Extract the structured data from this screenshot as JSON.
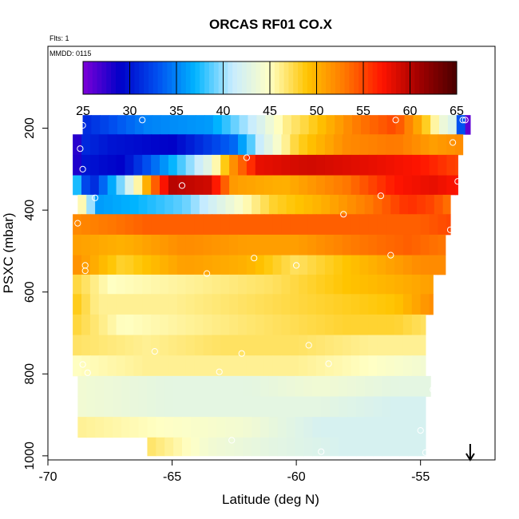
{
  "chart_data": {
    "type": "heatmap",
    "title": "ORCAS RF01 CO.X",
    "notes": [
      "Flts: 1",
      "MMDD: 0115"
    ],
    "xlabel": "Latitude (deg N)",
    "ylabel": "PSXC (mbar)",
    "xlim": [
      -70,
      -52
    ],
    "ylim": [
      1010,
      0
    ],
    "y_reversed": true,
    "x_ticks": [
      -70,
      -65,
      -60,
      -55
    ],
    "x_tick_labels": [
      "-70",
      "-65",
      "-60",
      "-55"
    ],
    "y_ticks": [
      200,
      400,
      600,
      800,
      1000
    ],
    "y_tick_labels": [
      "200",
      "400",
      "600",
      "800",
      "1000"
    ],
    "colorbar": {
      "min": 25,
      "max": 65,
      "ticks": [
        25,
        30,
        35,
        40,
        45,
        50,
        55,
        60,
        65
      ],
      "tick_labels": [
        "25",
        "30",
        "35",
        "40",
        "45",
        "50",
        "55",
        "60",
        "65"
      ],
      "colors": [
        "#7d00d8",
        "#0000c8",
        "#0050f0",
        "#00b4ff",
        "#c8ecff",
        "#ffffc4",
        "#ffc400",
        "#ff7800",
        "#ff1400",
        "#a00000",
        "#4a0000"
      ]
    },
    "legend": "top",
    "grid": false,
    "pressure_bins": [
      {
        "p": 190,
        "lat_range": [
          -68.6,
          -53.0
        ],
        "knots": [
          [
            -68.6,
            31
          ],
          [
            -66.0,
            35
          ],
          [
            -63.5,
            36
          ],
          [
            -61.5,
            42
          ],
          [
            -60.5,
            46
          ],
          [
            -59.5,
            48
          ],
          [
            -57.5,
            53
          ],
          [
            -56.0,
            55
          ],
          [
            -55.0,
            50
          ],
          [
            -54.2,
            44
          ],
          [
            -53.6,
            42
          ],
          [
            -53.2,
            26
          ]
        ]
      },
      {
        "p": 240,
        "lat_range": [
          -69.0,
          -53.3
        ],
        "knots": [
          [
            -69.0,
            26
          ],
          [
            -68.5,
            31
          ],
          [
            -67.5,
            30
          ],
          [
            -65.0,
            29
          ],
          [
            -62.5,
            34
          ],
          [
            -61.5,
            41
          ],
          [
            -60.0,
            48
          ],
          [
            -58.0,
            52
          ],
          [
            -56.0,
            53
          ],
          [
            -54.5,
            51
          ],
          [
            -53.3,
            52
          ]
        ]
      },
      {
        "p": 290,
        "lat_range": [
          -69.0,
          -53.5
        ],
        "knots": [
          [
            -69.0,
            27
          ],
          [
            -68.5,
            30
          ],
          [
            -67.0,
            29
          ],
          [
            -65.0,
            37
          ],
          [
            -63.5,
            43
          ],
          [
            -62.5,
            52
          ],
          [
            -61.5,
            58
          ],
          [
            -59.5,
            59
          ],
          [
            -57.0,
            58
          ],
          [
            -55.0,
            57
          ],
          [
            -53.5,
            55
          ]
        ]
      },
      {
        "p": 340,
        "lat_range": [
          -69.0,
          -53.5
        ],
        "knots": [
          [
            -69.0,
            40
          ],
          [
            -68.3,
            30
          ],
          [
            -67.5,
            36
          ],
          [
            -66.5,
            44
          ],
          [
            -65.8,
            53
          ],
          [
            -65.0,
            60
          ],
          [
            -63.5,
            59
          ],
          [
            -62.5,
            51
          ],
          [
            -60.5,
            50
          ],
          [
            -58.0,
            53
          ],
          [
            -56.0,
            57
          ],
          [
            -54.5,
            58
          ],
          [
            -53.5,
            57
          ]
        ]
      },
      {
        "p": 385,
        "lat_range": [
          -68.8,
          -53.8
        ],
        "knots": [
          [
            -68.8,
            48
          ],
          [
            -68.0,
            36
          ],
          [
            -66.5,
            37
          ],
          [
            -64.5,
            39
          ],
          [
            -62.5,
            44
          ],
          [
            -61.0,
            48
          ],
          [
            -59.0,
            50
          ],
          [
            -57.0,
            53
          ],
          [
            -55.5,
            56
          ],
          [
            -54.5,
            55
          ],
          [
            -53.8,
            53
          ]
        ]
      },
      {
        "p": 435,
        "lat_range": [
          -69.0,
          -53.8
        ],
        "knots": [
          [
            -69.0,
            52
          ],
          [
            -66.0,
            54
          ],
          [
            -62.0,
            54
          ],
          [
            -58.0,
            54
          ],
          [
            -55.0,
            54
          ],
          [
            -53.8,
            55
          ]
        ]
      },
      {
        "p": 485,
        "lat_range": [
          -69.0,
          -54.0
        ],
        "knots": [
          [
            -69.0,
            51
          ],
          [
            -67.0,
            50
          ],
          [
            -64.5,
            52
          ],
          [
            -62.0,
            51
          ],
          [
            -60.0,
            51
          ],
          [
            -57.5,
            53
          ],
          [
            -55.5,
            54
          ],
          [
            -54.0,
            53
          ]
        ]
      },
      {
        "p": 535,
        "lat_range": [
          -69.0,
          -54.0
        ],
        "knots": [
          [
            -69.0,
            52
          ],
          [
            -67.0,
            48
          ],
          [
            -64.5,
            51
          ],
          [
            -62.0,
            50
          ],
          [
            -60.0,
            47
          ],
          [
            -57.0,
            50
          ],
          [
            -55.0,
            52
          ],
          [
            -54.0,
            52
          ]
        ]
      },
      {
        "p": 580,
        "lat_range": [
          -69.0,
          -54.5
        ],
        "knots": [
          [
            -69.0,
            48
          ],
          [
            -67.5,
            45
          ],
          [
            -64.0,
            46
          ],
          [
            -61.0,
            47
          ],
          [
            -58.0,
            49
          ],
          [
            -56.0,
            50
          ],
          [
            -54.5,
            51
          ]
        ]
      },
      {
        "p": 630,
        "lat_range": [
          -69.0,
          -54.5
        ],
        "knots": [
          [
            -69.0,
            49
          ],
          [
            -68.0,
            46
          ],
          [
            -65.0,
            46
          ],
          [
            -62.0,
            47
          ],
          [
            -59.0,
            48
          ],
          [
            -56.0,
            49
          ],
          [
            -54.5,
            52
          ]
        ]
      },
      {
        "p": 680,
        "lat_range": [
          -69.0,
          -54.8
        ],
        "knots": [
          [
            -69.0,
            48
          ],
          [
            -67.0,
            45
          ],
          [
            -64.0,
            46
          ],
          [
            -61.0,
            47
          ],
          [
            -58.0,
            48
          ],
          [
            -56.0,
            48
          ],
          [
            -54.8,
            47
          ]
        ]
      },
      {
        "p": 730,
        "lat_range": [
          -69.0,
          -54.8
        ],
        "knots": [
          [
            -69.0,
            47
          ],
          [
            -66.0,
            46
          ],
          [
            -63.0,
            47
          ],
          [
            -60.0,
            47
          ],
          [
            -57.0,
            46
          ],
          [
            -54.8,
            46
          ]
        ]
      },
      {
        "p": 780,
        "lat_range": [
          -69.0,
          -54.8
        ],
        "knots": [
          [
            -69.0,
            45
          ],
          [
            -66.0,
            46
          ],
          [
            -63.0,
            46
          ],
          [
            -60.0,
            46
          ],
          [
            -57.0,
            45
          ],
          [
            -54.8,
            44
          ]
        ]
      },
      {
        "p": 830,
        "lat_range": [
          -68.8,
          -54.6
        ],
        "knots": [
          [
            -68.8,
            44
          ],
          [
            -65.0,
            43
          ],
          [
            -62.0,
            43
          ],
          [
            -59.0,
            44
          ],
          [
            -56.0,
            43
          ],
          [
            -54.6,
            43
          ]
        ]
      },
      {
        "p": 880,
        "lat_range": [
          -68.8,
          -54.8
        ],
        "knots": [
          [
            -68.8,
            44
          ],
          [
            -65.0,
            43
          ],
          [
            -62.0,
            43
          ],
          [
            -59.0,
            43
          ],
          [
            -56.0,
            42
          ],
          [
            -54.8,
            42
          ]
        ]
      },
      {
        "p": 930,
        "lat_range": [
          -68.8,
          -54.8
        ],
        "knots": [
          [
            -68.8,
            46
          ],
          [
            -65.5,
            45
          ],
          [
            -62.0,
            44
          ],
          [
            -59.0,
            42
          ],
          [
            -56.0,
            42
          ],
          [
            -54.8,
            42
          ]
        ]
      },
      {
        "p": 980,
        "lat_range": [
          -66.0,
          -54.8
        ],
        "knots": [
          [
            -66.0,
            47
          ],
          [
            -63.5,
            44
          ],
          [
            -61.0,
            43
          ],
          [
            -58.0,
            42
          ],
          [
            -55.5,
            42
          ],
          [
            -54.8,
            42
          ]
        ]
      }
    ],
    "obs_points": [
      {
        "lat": -68.6,
        "p": 193
      },
      {
        "lat": -66.2,
        "p": 180
      },
      {
        "lat": -56.0,
        "p": 180
      },
      {
        "lat": -53.2,
        "p": 180
      },
      {
        "lat": -53.3,
        "p": 180
      },
      {
        "lat": -68.7,
        "p": 250
      },
      {
        "lat": -62.0,
        "p": 272
      },
      {
        "lat": -53.7,
        "p": 235
      },
      {
        "lat": -68.6,
        "p": 300
      },
      {
        "lat": -64.6,
        "p": 340
      },
      {
        "lat": -53.5,
        "p": 330
      },
      {
        "lat": -68.1,
        "p": 370
      },
      {
        "lat": -56.6,
        "p": 365
      },
      {
        "lat": -58.1,
        "p": 410
      },
      {
        "lat": -68.8,
        "p": 432
      },
      {
        "lat": -53.8,
        "p": 448
      },
      {
        "lat": -61.7,
        "p": 517
      },
      {
        "lat": -56.2,
        "p": 510
      },
      {
        "lat": -68.5,
        "p": 535
      },
      {
        "lat": -68.5,
        "p": 548
      },
      {
        "lat": -60.0,
        "p": 535
      },
      {
        "lat": -63.6,
        "p": 555
      },
      {
        "lat": -65.7,
        "p": 745
      },
      {
        "lat": -62.2,
        "p": 750
      },
      {
        "lat": -59.5,
        "p": 730
      },
      {
        "lat": -68.6,
        "p": 777
      },
      {
        "lat": -68.4,
        "p": 797
      },
      {
        "lat": -63.1,
        "p": 795
      },
      {
        "lat": -58.7,
        "p": 775
      },
      {
        "lat": -54.5,
        "p": 838
      },
      {
        "lat": -55.0,
        "p": 938
      },
      {
        "lat": -62.6,
        "p": 962
      },
      {
        "lat": -59.0,
        "p": 990
      },
      {
        "lat": -54.8,
        "p": 992
      }
    ],
    "marker": {
      "type": "arrow-down",
      "lat": -53.0
    }
  }
}
